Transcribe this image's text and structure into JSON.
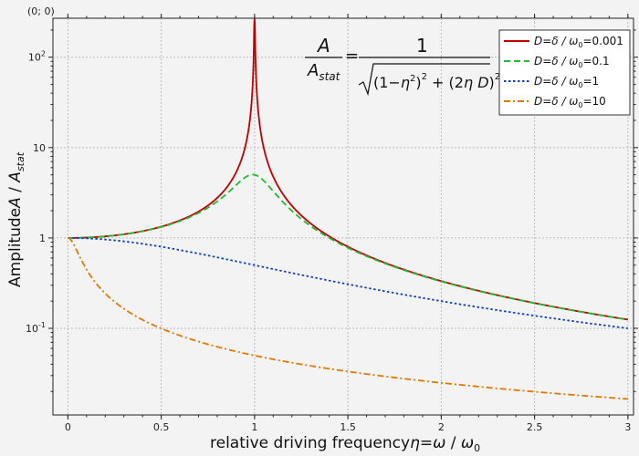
{
  "window": {
    "corner_label": "(0; 0)"
  },
  "chart_data": {
    "type": "line",
    "x_label": "relative driving frequency η=ω / ω₀",
    "y_label": "Amplitude A / A_stat",
    "y_scale": "log",
    "xlim": [
      -0.08,
      3.03
    ],
    "ylim": [
      0.011,
      270
    ],
    "x_ticks": [
      0,
      0.5,
      1,
      1.5,
      2,
      2.5,
      3
    ],
    "x_tick_labels": [
      "0",
      "0.5",
      "1",
      "1.5",
      "2",
      "2.5",
      "3"
    ],
    "y_ticks": [
      0.1,
      1,
      10,
      100
    ],
    "y_tick_labels": [
      "10⁻¹",
      "1",
      "10",
      "10²"
    ],
    "grid": true,
    "legend_position": "top-right",
    "formula": {
      "lhs_num": "A",
      "lhs_den": "A_stat",
      "rhs_num": "1",
      "rhs_den": "√((1−η²)² + (2ηD)²)"
    },
    "series": [
      {
        "name": "D=δ / ω₀=0.001",
        "D": 0.001,
        "color": "#c00000",
        "dash": "solid"
      },
      {
        "name": "D=δ / ω₀=0.1",
        "D": 0.1,
        "color": "#22bb33",
        "dash": "dashed"
      },
      {
        "name": "D=δ / ω₀=1",
        "D": 1,
        "color": "#1040c0",
        "dash": "dotted"
      },
      {
        "name": "D=δ / ω₀=10",
        "D": 10,
        "color": "#e07800",
        "dash": "dashdot"
      }
    ],
    "sample_points": {
      "x": [
        0,
        0.5,
        0.9,
        1.0,
        1.5,
        2.0,
        2.5,
        3.0
      ],
      "D=0.001": [
        1.0,
        1.333,
        5.26,
        230,
        0.8,
        0.333,
        0.19,
        0.125
      ],
      "D=0.1": [
        1.0,
        1.32,
        4.0,
        5.0,
        0.78,
        0.33,
        0.19,
        0.124
      ],
      "D=1": [
        1.0,
        0.8,
        0.55,
        0.5,
        0.31,
        0.2,
        0.138,
        0.1
      ],
      "D=10": [
        1.0,
        0.1,
        0.055,
        0.05,
        0.033,
        0.025,
        0.02,
        0.0167
      ]
    }
  }
}
